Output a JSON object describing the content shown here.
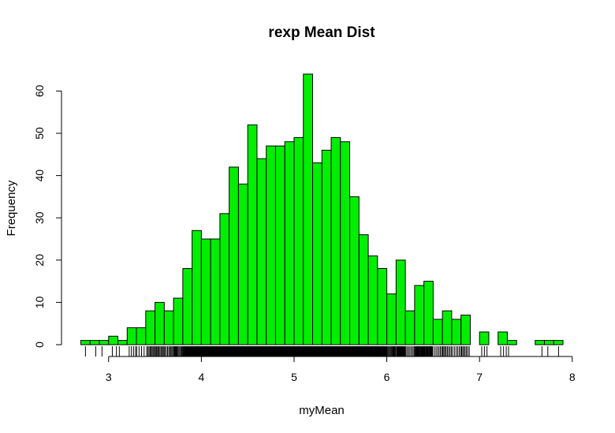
{
  "chart_data": {
    "type": "bar",
    "title": "rexp Mean Dist",
    "xlabel": "myMean",
    "ylabel": "Frequency",
    "bin_width": 0.1,
    "bins_start": [
      2.7,
      2.8,
      2.9,
      3.0,
      3.1,
      3.2,
      3.3,
      3.4,
      3.5,
      3.6,
      3.7,
      3.8,
      3.9,
      4.0,
      4.1,
      4.2,
      4.3,
      4.4,
      4.5,
      4.6,
      4.7,
      4.8,
      4.9,
      5.0,
      5.1,
      5.2,
      5.3,
      5.4,
      5.5,
      5.6,
      5.7,
      5.8,
      5.9,
      6.0,
      6.1,
      6.2,
      6.3,
      6.4,
      6.5,
      6.6,
      6.7,
      6.8,
      6.9,
      7.0,
      7.1,
      7.2,
      7.3,
      7.4,
      7.5,
      7.6,
      7.7,
      7.8
    ],
    "values": [
      1,
      1,
      1,
      2,
      1,
      4,
      4,
      8,
      10,
      8,
      11,
      18,
      27,
      25,
      25,
      31,
      42,
      38,
      52,
      44,
      47,
      47,
      48,
      49,
      64,
      43,
      46,
      49,
      48,
      35,
      26,
      21,
      18,
      12,
      20,
      8,
      14,
      15,
      6,
      8,
      6,
      7,
      0,
      3,
      0,
      3,
      1,
      0,
      0,
      1,
      1,
      1
    ],
    "x_ticks": [
      "3",
      "4",
      "5",
      "6",
      "7",
      "8"
    ],
    "y_ticks": [
      "0",
      "10",
      "20",
      "30",
      "40",
      "50",
      "60"
    ],
    "xlim": [
      2.7,
      7.9
    ],
    "ylim": [
      0,
      64
    ],
    "bar_color": "#00EE00",
    "border_color": "#000000",
    "rug": true
  }
}
